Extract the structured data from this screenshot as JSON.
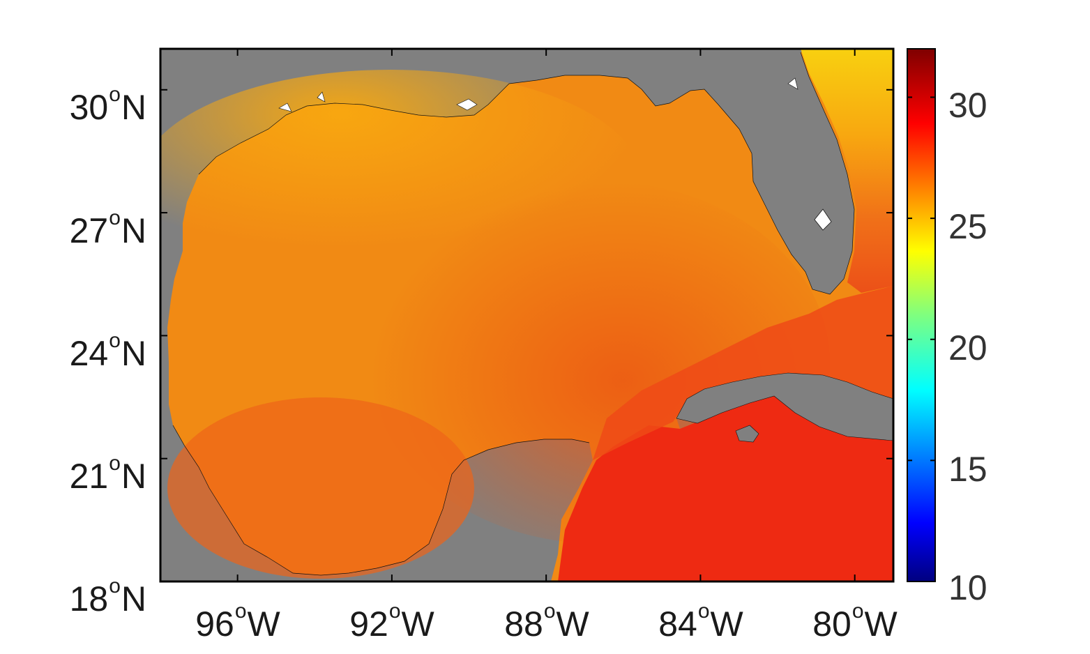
{
  "map": {
    "extent": {
      "lon_min": -98.0,
      "lon_max": -79.0,
      "lat_min": 18.0,
      "lat_max": 31.0
    },
    "land_color": "#808080",
    "ocean_colors": {
      "north": "#F7A010",
      "central": "#F08018",
      "east": "#EC6418",
      "caribbean": "#EE2010",
      "atlantic_south": "#F05A10",
      "atlantic_north_cold": "#F8D010"
    },
    "lat_ticks": [
      {
        "value": 30,
        "num": "30",
        "deg": "o",
        "hem": "N"
      },
      {
        "value": 27,
        "num": "27",
        "deg": "o",
        "hem": "N"
      },
      {
        "value": 24,
        "num": "24",
        "deg": "o",
        "hem": "N"
      },
      {
        "value": 21,
        "num": "21",
        "deg": "o",
        "hem": "N"
      },
      {
        "value": 18,
        "num": "18",
        "deg": "o",
        "hem": "N"
      }
    ],
    "lon_ticks": [
      {
        "value": -96,
        "num": "96",
        "deg": "o",
        "hem": "W"
      },
      {
        "value": -92,
        "num": "92",
        "deg": "o",
        "hem": "W"
      },
      {
        "value": -88,
        "num": "88",
        "deg": "o",
        "hem": "W"
      },
      {
        "value": -84,
        "num": "84",
        "deg": "o",
        "hem": "W"
      },
      {
        "value": -80,
        "num": "80",
        "deg": "o",
        "hem": "W"
      }
    ]
  },
  "colorbar": {
    "min": 10,
    "max": 32,
    "colormap": "jet",
    "ticks": [
      "30",
      "25",
      "20",
      "15",
      "10"
    ],
    "tick_values": [
      30,
      25,
      20,
      15,
      10
    ]
  }
}
